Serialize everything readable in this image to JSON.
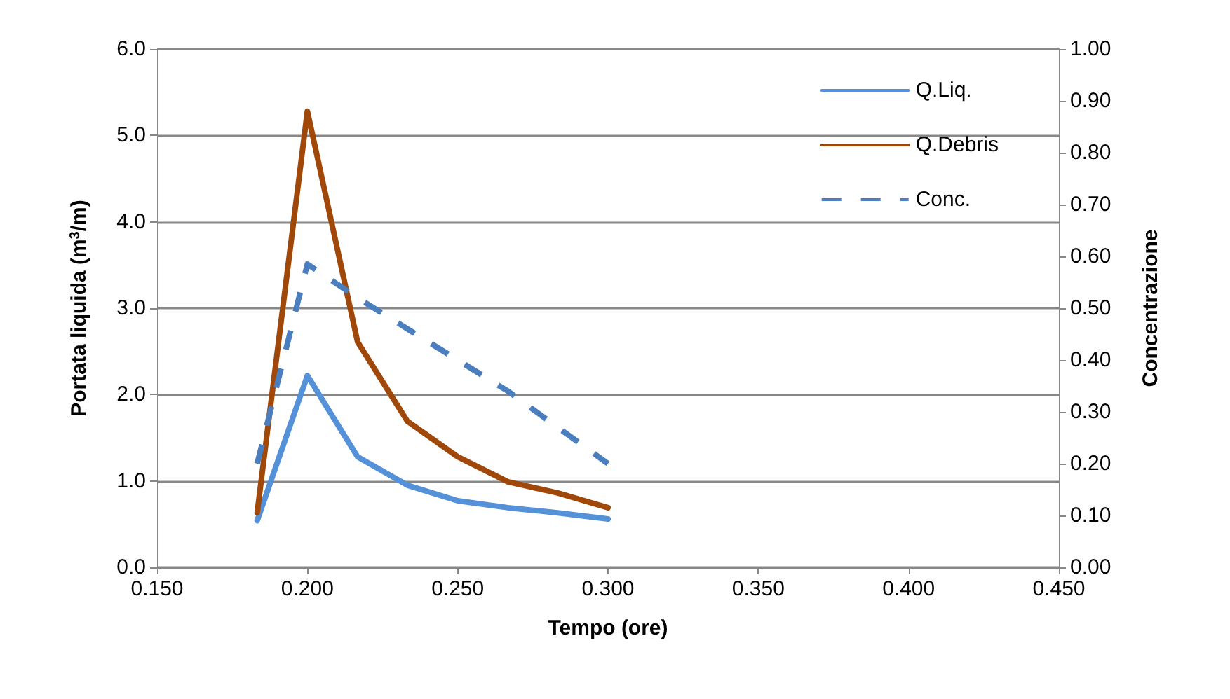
{
  "chart_data": {
    "type": "line",
    "xlabel": "Tempo (ore)",
    "ylabel": "Portata liquida (m$^{3}$/m)",
    "y2label": "Concentrazione",
    "x": [
      0.1833,
      0.2,
      0.2167,
      0.2333,
      0.25,
      0.2667,
      0.2833,
      0.3
    ],
    "series": [
      {
        "name": "Q.Liq.",
        "color": "#5591d8",
        "values": [
          0.54,
          2.22,
          1.28,
          0.95,
          0.77,
          0.69,
          0.63,
          0.56
        ]
      },
      {
        "name": "Q.Debris",
        "color": "#a0480a",
        "values": [
          0.63,
          5.28,
          2.61,
          1.69,
          1.28,
          0.99,
          0.86,
          0.69
        ]
      },
      {
        "name": "Conc.",
        "color": "#4a7ebf",
        "axis": "y2",
        "line_style": "dashed",
        "values": [
          0.2,
          0.585,
          0.52,
          0.46,
          0.4,
          0.34,
          0.27,
          0.2
        ]
      }
    ],
    "xlim": [
      0.15,
      0.45
    ],
    "xticks": [
      {
        "value": 0.15,
        "label": "0.150"
      },
      {
        "value": 0.2,
        "label": "0.200"
      },
      {
        "value": 0.25,
        "label": "0.250"
      },
      {
        "value": 0.3,
        "label": "0.300"
      },
      {
        "value": 0.35,
        "label": "0.350"
      },
      {
        "value": 0.4,
        "label": "0.400"
      },
      {
        "value": 0.45,
        "label": "0.450"
      }
    ],
    "ylim": [
      0,
      6
    ],
    "yticks": [
      {
        "value": 0,
        "label": "0.0"
      },
      {
        "value": 1,
        "label": "1.0"
      },
      {
        "value": 2,
        "label": "2.0"
      },
      {
        "value": 3,
        "label": "3.0"
      },
      {
        "value": 4,
        "label": "4.0"
      },
      {
        "value": 5,
        "label": "5.0"
      },
      {
        "value": 6,
        "label": "6.0"
      }
    ],
    "y2lim": [
      0,
      1
    ],
    "y2ticks": [
      {
        "value": 0,
        "label": "0.00"
      },
      {
        "value": 0.1,
        "label": "0.10"
      },
      {
        "value": 0.2,
        "label": "0.20"
      },
      {
        "value": 0.3,
        "label": "0.30"
      },
      {
        "value": 0.4,
        "label": "0.40"
      },
      {
        "value": 0.5,
        "label": "0.50"
      },
      {
        "value": 0.6,
        "label": "0.60"
      },
      {
        "value": 0.7,
        "label": "0.70"
      },
      {
        "value": 0.8,
        "label": "0.80"
      },
      {
        "value": 0.9,
        "label": "0.90"
      },
      {
        "value": 1,
        "label": "1.00"
      }
    ],
    "grid": "y",
    "legend": "top right"
  }
}
